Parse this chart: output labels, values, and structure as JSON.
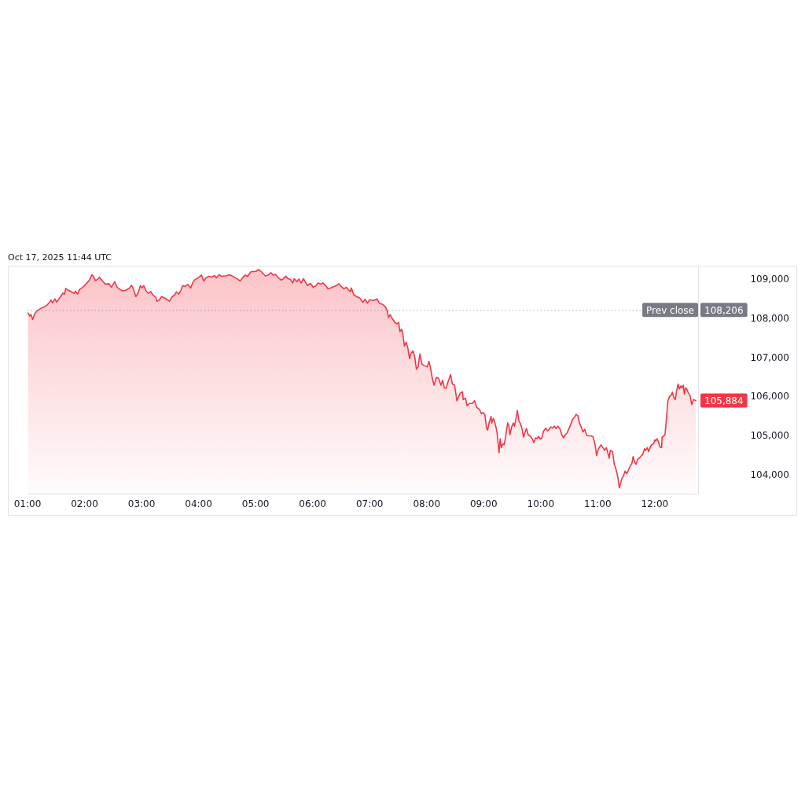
{
  "chart_data": {
    "type": "area",
    "annotations": [
      "Oct 17, 2025 11:44 UTC",
      "108,206",
      {
        "text": "105,884",
        "x": 12.72,
        "y": 105884
      }
    ],
    "x": [
      1.01,
      1.04,
      1.06,
      1.09,
      1.12,
      1.17,
      1.25,
      1.3,
      1.34,
      1.39,
      1.41,
      1.44,
      1.48,
      1.51,
      1.57,
      1.62,
      1.65,
      1.67,
      1.72,
      1.82,
      1.84,
      1.88,
      1.91,
      1.96,
      2,
      2.08,
      2.13,
      2.16,
      2.19,
      2.23,
      2.26,
      2.31,
      2.36,
      2.43,
      2.47,
      2.53,
      2.57,
      2.62,
      2.67,
      2.72,
      2.79,
      2.82,
      2.85,
      2.9,
      2.94,
      2.98,
      3.01,
      3.04,
      3.08,
      3.12,
      3.16,
      3.2,
      3.25,
      3.27,
      3.31,
      3.35,
      3.41,
      3.49,
      3.54,
      3.58,
      3.61,
      3.65,
      3.69,
      3.72,
      3.76,
      3.81,
      3.86,
      3.9,
      3.93,
      3.97,
      4.02,
      4.05,
      4.09,
      4.13,
      4.18,
      4.23,
      4.28,
      4.31,
      4.36,
      4.4,
      4.48,
      4.54,
      4.6,
      4.67,
      4.73,
      4.77,
      4.82,
      4.86,
      4.92,
      4.97,
      5.01,
      5.05,
      5.1,
      5.17,
      5.22,
      5.27,
      5.31,
      5.35,
      5.4,
      5.45,
      5.48,
      5.53,
      5.57,
      5.61,
      5.65,
      5.68,
      5.72,
      5.76,
      5.8,
      5.84,
      5.87,
      5.91,
      5.94,
      5.97,
      6.01,
      6.06,
      6.1,
      6.14,
      6.18,
      6.23,
      6.27,
      6.32,
      6.36,
      6.42,
      6.46,
      6.5,
      6.55,
      6.59,
      6.63,
      6.66,
      6.68,
      6.72,
      6.77,
      6.82,
      6.84,
      6.88,
      6.92,
      6.96,
      7,
      7.07,
      7.13,
      7.17,
      7.23,
      7.28,
      7.31,
      7.33,
      7.36,
      7.4,
      7.44,
      7.48,
      7.51,
      7.53,
      7.56,
      7.58,
      7.61,
      7.64,
      7.67,
      7.7,
      7.72,
      7.76,
      7.79,
      7.82,
      7.85,
      7.88,
      7.92,
      7.96,
      8.01,
      8.04,
      8.07,
      8.1,
      8.13,
      8.17,
      8.21,
      8.25,
      8.28,
      8.31,
      8.34,
      8.37,
      8.42,
      8.45,
      8.49,
      8.53,
      8.56,
      8.59,
      8.63,
      8.64,
      8.68,
      8.71,
      8.75,
      8.8,
      8.84,
      8.88,
      8.93,
      8.96,
      8.99,
      9.02,
      9.05,
      9.07,
      9.1,
      9.13,
      9.14,
      9.17,
      9.2,
      9.23,
      9.25,
      9.27,
      9.29,
      9.31,
      9.34,
      9.36,
      9.39,
      9.42,
      9.44,
      9.46,
      9.49,
      9.52,
      9.54,
      9.57,
      9.59,
      9.62,
      9.64,
      9.67,
      9.7,
      9.72,
      9.75,
      9.78,
      9.81,
      9.85,
      9.88,
      9.91,
      9.94,
      9.96,
      9.99,
      10.02,
      10.05,
      10.09,
      10.12,
      10.15,
      10.18,
      10.21,
      10.24,
      10.27,
      10.3,
      10.34,
      10.37,
      10.4,
      10.43,
      10.46,
      10.49,
      10.52,
      10.56,
      10.59,
      10.62,
      10.65,
      10.68,
      10.71,
      10.74,
      10.77,
      10.81,
      10.85,
      10.89,
      10.92,
      10.95,
      10.98,
      11.01,
      11.04,
      11.06,
      11.09,
      11.12,
      11.15,
      11.17,
      11.2,
      11.22,
      11.26,
      11.29,
      11.31,
      11.34,
      11.36,
      11.38,
      11.4,
      11.42,
      11.45,
      11.48,
      11.51,
      11.54,
      11.57,
      11.6,
      11.62,
      11.65,
      11.67,
      11.7,
      11.73,
      11.77,
      11.79,
      11.82,
      11.84,
      11.87,
      11.89,
      11.91,
      11.94,
      11.98,
      12,
      12.02,
      12.04,
      12.07,
      12.09,
      12.12,
      12.13,
      12.16,
      12.18,
      12.21,
      12.23,
      12.26,
      12.29,
      12.31,
      12.33,
      12.36,
      12.38,
      12.41,
      12.43,
      12.46,
      12.48,
      12.5,
      12.52,
      12.54,
      12.56,
      12.59,
      12.62,
      12.65,
      12.68,
      12.72
    ],
    "values": [
      108130,
      108050,
      108090,
      107960,
      108090,
      108190,
      108260,
      108290,
      108330,
      108410,
      108460,
      108390,
      108490,
      108410,
      108530,
      108640,
      108610,
      108760,
      108710,
      108630,
      108690,
      108610,
      108730,
      108780,
      108830,
      108960,
      109110,
      109060,
      108960,
      108990,
      109050,
      108960,
      108870,
      108880,
      108790,
      108930,
      108790,
      108740,
      108690,
      108710,
      108770,
      108840,
      108770,
      108550,
      108640,
      108830,
      108770,
      108830,
      108690,
      108630,
      108680,
      108590,
      108530,
      108430,
      108460,
      108550,
      108510,
      108430,
      108550,
      108590,
      108670,
      108610,
      108710,
      108830,
      108810,
      108860,
      108770,
      108910,
      108980,
      109010,
      109060,
      109100,
      108950,
      109030,
      109070,
      109050,
      109090,
      109030,
      109110,
      109070,
      109080,
      109110,
      109070,
      109010,
      108950,
      109030,
      109100,
      109070,
      109190,
      109190,
      109200,
      109240,
      109190,
      109080,
      109100,
      109160,
      109100,
      109120,
      109030,
      108970,
      109000,
      109070,
      109010,
      108990,
      108900,
      109010,
      108930,
      109000,
      108900,
      109010,
      108930,
      108830,
      108870,
      108880,
      108790,
      108830,
      108900,
      108870,
      108900,
      108830,
      108750,
      108770,
      108800,
      108830,
      108880,
      108810,
      108750,
      108790,
      108720,
      108680,
      108770,
      108600,
      108550,
      108520,
      108490,
      108400,
      108480,
      108380,
      108470,
      108450,
      108490,
      108380,
      108350,
      108280,
      108180,
      108010,
      108090,
      107980,
      107890,
      107850,
      107890,
      107650,
      107710,
      107610,
      107280,
      107380,
      107230,
      106960,
      107080,
      107160,
      107010,
      106690,
      106750,
      107080,
      106810,
      106780,
      106750,
      106890,
      106710,
      106450,
      106280,
      106480,
      106450,
      106280,
      106410,
      106210,
      106200,
      106350,
      106550,
      106310,
      106280,
      105880,
      105980,
      106080,
      106110,
      105910,
      105950,
      105750,
      105810,
      105810,
      105880,
      105710,
      105650,
      105550,
      105580,
      105530,
      105180,
      105130,
      105350,
      105480,
      105310,
      105430,
      105300,
      105110,
      104850,
      104550,
      104910,
      104680,
      104780,
      104750,
      105010,
      105310,
      105250,
      105010,
      105210,
      105310,
      105230,
      105450,
      105630,
      105350,
      105310,
      105180,
      104950,
      105050,
      105170,
      105010,
      104980,
      104910,
      104810,
      104930,
      104910,
      104970,
      104900,
      104930,
      105100,
      105180,
      105110,
      105150,
      105210,
      105180,
      105230,
      105170,
      105230,
      105150,
      105010,
      104930,
      105010,
      105050,
      105150,
      105250,
      105410,
      105450,
      105530,
      105500,
      105310,
      105210,
      105080,
      105150,
      104990,
      104980,
      104980,
      104950,
      104780,
      104480,
      104650,
      104710,
      104750,
      104680,
      104610,
      104680,
      104590,
      104410,
      104610,
      104580,
      104250,
      104180,
      104010,
      103850,
      103650,
      103750,
      103880,
      103950,
      104080,
      104010,
      104110,
      104210,
      104280,
      104450,
      104310,
      104250,
      104380,
      104410,
      104480,
      104510,
      104650,
      104610,
      104680,
      104580,
      104650,
      104750,
      104780,
      104880,
      104850,
      104910,
      104810,
      104700,
      104680,
      104950,
      104980,
      105010,
      105510,
      105880,
      105990,
      106030,
      106100,
      105980,
      105910,
      106110,
      106310,
      106180,
      106260,
      106210,
      106280,
      106050,
      106210,
      106180,
      106080,
      106010,
      105780,
      105910,
      105884
    ],
    "color": "#f23645",
    "xlim": [
      1,
      12.76
    ],
    "xticks": [
      {
        "value": 1,
        "label": "01:00"
      },
      {
        "value": 2,
        "label": "02:00"
      },
      {
        "value": 3,
        "label": "03:00"
      },
      {
        "value": 4,
        "label": "04:00"
      },
      {
        "value": 5,
        "label": "05:00"
      },
      {
        "value": 6,
        "label": "06:00"
      },
      {
        "value": 7,
        "label": "07:00"
      },
      {
        "value": 8,
        "label": "08:00"
      },
      {
        "value": 9,
        "label": "09:00"
      },
      {
        "value": 10,
        "label": "10:00"
      },
      {
        "value": 11,
        "label": "11:00"
      },
      {
        "value": 12,
        "label": "12:00"
      }
    ],
    "ylim": [
      103500,
      109300
    ],
    "yticks": [
      {
        "value": 104000,
        "label": "104,000"
      },
      {
        "value": 105000,
        "label": "105,000"
      },
      {
        "value": 106000,
        "label": "106,000"
      },
      {
        "value": 107000,
        "label": "107,000"
      },
      {
        "value": 108000,
        "label": "108,000"
      },
      {
        "value": 109000,
        "label": "109,000"
      }
    ],
    "ref_lines": [
      {
        "axis": "y",
        "value": 108206,
        "label": "Prev close",
        "line_style": "dotted",
        "color": "#787b86"
      }
    ]
  }
}
